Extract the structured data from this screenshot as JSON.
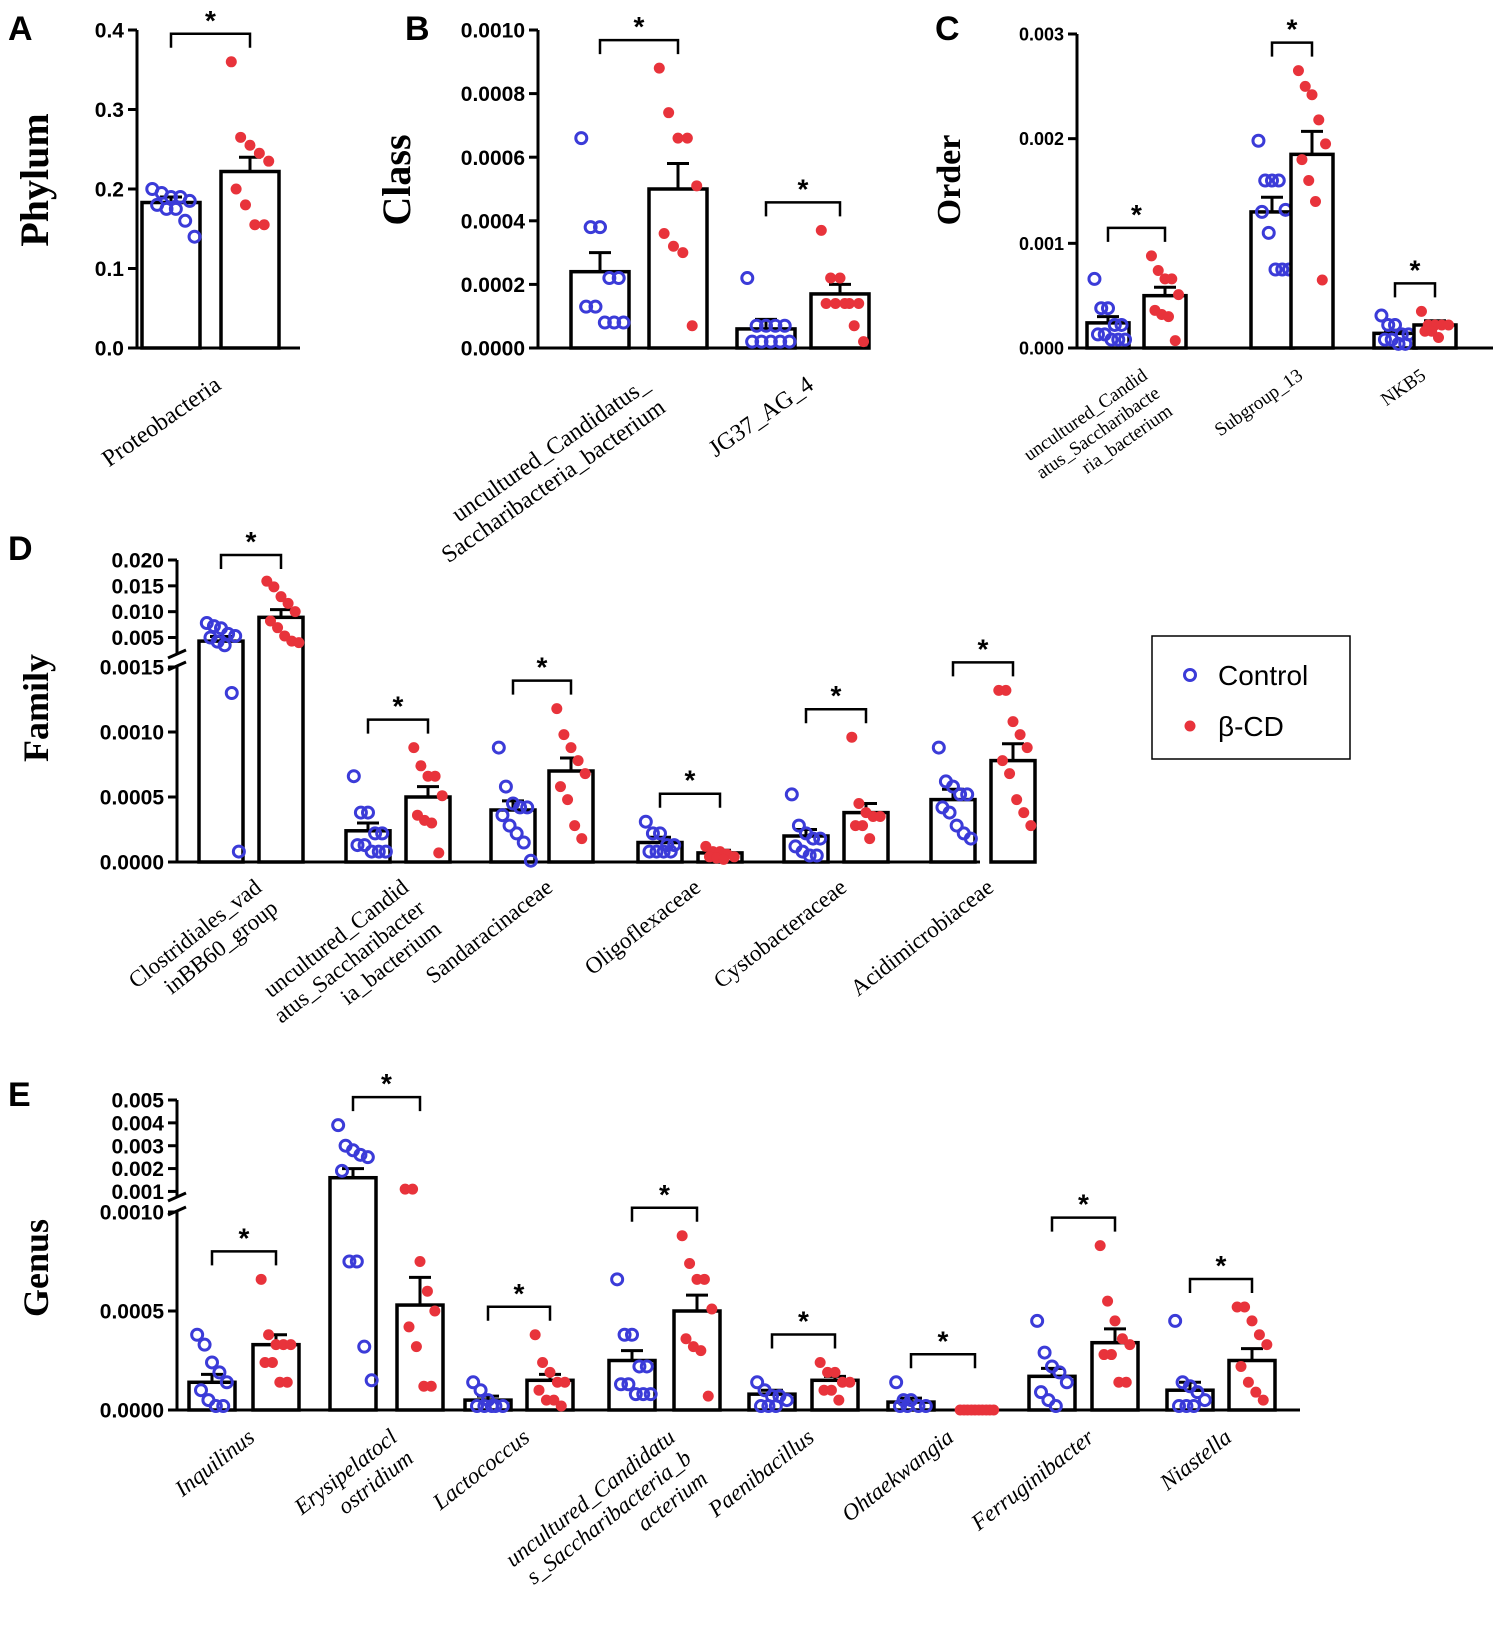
{
  "legend": {
    "control": "Control",
    "treatment": "β-CD"
  },
  "colors": {
    "control": "#3b3bd8",
    "treatment": "#e8333b"
  },
  "chart_data": [
    {
      "panel": "A",
      "type": "bar",
      "ylabel": "Phylum",
      "ylim": [
        0,
        0.4
      ],
      "ticks": [
        0,
        0.1,
        0.2,
        0.3,
        0.4
      ],
      "tick_labels": [
        "0.0",
        "0.1",
        "0.2",
        "0.3",
        "0.4"
      ],
      "categories": [
        "Proteobacteria"
      ],
      "cat_italic": false,
      "series": [
        {
          "name": "Control",
          "values": [
            0.183
          ],
          "sem": [
            0.007
          ],
          "points": [
            [
              0.2,
              0.195,
              0.19,
              0.19,
              0.185,
              0.18,
              0.175,
              0.175,
              0.16,
              0.14
            ]
          ]
        },
        {
          "name": "β-CD",
          "values": [
            0.222
          ],
          "sem": [
            0.018
          ],
          "points": [
            [
              0.36,
              0.265,
              0.255,
              0.245,
              0.235,
              0.2,
              0.18,
              0.155,
              0.155
            ]
          ]
        }
      ],
      "significance": [
        "*"
      ]
    },
    {
      "panel": "B",
      "type": "bar",
      "ylabel": "Class",
      "ylim": [
        0,
        0.001
      ],
      "ticks": [
        0,
        0.0002,
        0.0004,
        0.0006,
        0.0008,
        0.001
      ],
      "tick_labels": [
        "0.0000",
        "0.0002",
        "0.0004",
        "0.0006",
        "0.0008",
        "0.0010"
      ],
      "categories": [
        "uncultured_Candidatus_|Saccharibacteria_bacterium",
        "JG37_AG_4"
      ],
      "cat_italic": false,
      "series": [
        {
          "name": "Control",
          "values": [
            0.00024,
            6e-05
          ],
          "sem": [
            6e-05,
            3e-05
          ],
          "points": [
            [
              0.00066,
              0.00038,
              0.00038,
              0.00022,
              0.00022,
              0.00013,
              0.00013,
              8e-05,
              8e-05,
              8e-05
            ],
            [
              0.00022,
              7e-05,
              7e-05,
              7e-05,
              7e-05,
              2e-05,
              2e-05,
              2e-05,
              2e-05,
              2e-05
            ]
          ]
        },
        {
          "name": "β-CD",
          "values": [
            0.0005,
            0.00017
          ],
          "sem": [
            8e-05,
            3e-05
          ],
          "points": [
            [
              0.00088,
              0.00074,
              0.00066,
              0.00066,
              0.00051,
              0.00036,
              0.00032,
              0.0003,
              7e-05
            ],
            [
              0.00037,
              0.00022,
              0.00022,
              0.00014,
              0.00014,
              0.00014,
              0.00014,
              0.00014,
              7e-05,
              2e-05
            ]
          ]
        }
      ],
      "significance": [
        "*",
        "*"
      ]
    },
    {
      "panel": "C",
      "type": "bar",
      "ylabel": "Order",
      "ylim": [
        0,
        0.003
      ],
      "ticks": [
        0,
        0.001,
        0.002,
        0.003
      ],
      "tick_labels": [
        "0.000",
        "0.001",
        "0.002",
        "0.003"
      ],
      "categories": [
        "uncultured_Candid|atus_Saccharibacte|ria_bacterium",
        "Subgroup_13",
        "NKB5"
      ],
      "cat_italic": false,
      "series": [
        {
          "name": "Control",
          "values": [
            0.00024,
            0.0013,
            0.00014
          ],
          "sem": [
            6e-05,
            0.00014,
            3e-05
          ],
          "points": [
            [
              0.00066,
              0.00038,
              0.00038,
              0.00022,
              0.00022,
              0.00013,
              0.00013,
              8e-05,
              8e-05,
              8e-05
            ],
            [
              0.00198,
              0.0016,
              0.0016,
              0.0016,
              0.00132,
              0.0013,
              0.0011,
              0.00075,
              0.00075,
              0.00075
            ],
            [
              0.00031,
              0.00022,
              0.00022,
              0.00013,
              0.00013,
              8e-05,
              8e-05,
              4e-05,
              4e-05
            ]
          ]
        },
        {
          "name": "β-CD",
          "values": [
            0.0005,
            0.00185,
            0.00022
          ],
          "sem": [
            8e-05,
            0.00022,
            4e-05
          ],
          "points": [
            [
              0.00088,
              0.00074,
              0.00066,
              0.00066,
              0.00051,
              0.00036,
              0.00032,
              0.0003,
              7e-05
            ],
            [
              0.00265,
              0.0025,
              0.00242,
              0.00218,
              0.00195,
              0.0018,
              0.0016,
              0.0014,
              0.00065
            ],
            [
              0.00035,
              0.00022,
              0.00022,
              0.00022,
              0.00022,
              0.00016,
              0.00016,
              0.0001
            ]
          ]
        }
      ],
      "significance": [
        "*",
        "*",
        "*"
      ]
    },
    {
      "panel": "D",
      "type": "bar",
      "ylabel": "Family",
      "broken_axis": true,
      "ylim_low": [
        0,
        0.0015
      ],
      "ylim_high": [
        0.002,
        0.02
      ],
      "ticks_low": [
        0,
        0.0005,
        0.001,
        0.0015
      ],
      "tick_labels_low": [
        "0.0000",
        "0.0005",
        "0.0010",
        "0.0015"
      ],
      "ticks_high": [
        0.005,
        0.01,
        0.015,
        0.02
      ],
      "tick_labels_high": [
        "0.005",
        "0.010",
        "0.015",
        "0.020"
      ],
      "categories": [
        "Clostridiales_vad|inBB60_group",
        "uncultured_Candid|atus_Saccharibacter|ia_bacterium",
        "Sandaracinaceae",
        "Oligoflexaceae",
        "Cystobacteraceae",
        "Acidimicrobiaceae"
      ],
      "cat_italic": false,
      "series": [
        {
          "name": "Control",
          "values": [
            0.0043,
            0.00024,
            0.0004,
            0.00015,
            0.0002,
            0.00048
          ],
          "sem": [
            0.0009,
            6e-05,
            7e-05,
            4e-05,
            5e-05,
            8e-05
          ],
          "points": [
            [
              0.0078,
              0.0072,
              0.0068,
              0.0057,
              0.0053,
              0.005,
              0.0042,
              0.0035,
              0.0013,
              8e-05
            ],
            [
              0.00066,
              0.00038,
              0.00038,
              0.00022,
              0.00022,
              0.00013,
              0.00013,
              8e-05,
              8e-05,
              8e-05
            ],
            [
              0.00088,
              0.00058,
              0.00045,
              0.00042,
              0.00042,
              0.00036,
              0.00028,
              0.00022,
              0.00015,
              1e-05
            ],
            [
              0.00031,
              0.00022,
              0.00022,
              0.00013,
              0.00013,
              8e-05,
              8e-05,
              8e-05,
              8e-05
            ],
            [
              0.00052,
              0.00028,
              0.00022,
              0.00018,
              0.00018,
              0.00012,
              8e-05,
              5e-05,
              5e-05
            ],
            [
              0.00088,
              0.00062,
              0.00058,
              0.00052,
              0.00052,
              0.00042,
              0.00038,
              0.00028,
              0.00022,
              0.00018
            ]
          ]
        },
        {
          "name": "β-CD",
          "values": [
            0.0089,
            0.0005,
            0.0007,
            7e-05,
            0.00038,
            0.00078
          ],
          "sem": [
            0.0015,
            8e-05,
            0.0001,
            2e-05,
            7e-05,
            0.00013
          ],
          "points": [
            [
              0.0159,
              0.0148,
              0.0129,
              0.0116,
              0.01,
              0.0082,
              0.0069,
              0.0053,
              0.0043,
              0.004
            ],
            [
              0.00088,
              0.00074,
              0.00066,
              0.00066,
              0.00051,
              0.00036,
              0.00032,
              0.0003,
              7e-05
            ],
            [
              0.00118,
              0.00098,
              0.00088,
              0.00078,
              0.00068,
              0.00058,
              0.00048,
              0.00028,
              0.00018
            ],
            [
              0.00012,
              8e-05,
              8e-05,
              6e-05,
              4e-05,
              4e-05,
              3e-05,
              2e-05
            ],
            [
              0.00096,
              0.00045,
              0.00038,
              0.00035,
              0.00035,
              0.00028,
              0.00028,
              0.00018
            ],
            [
              0.00132,
              0.00132,
              0.00108,
              0.00098,
              0.00088,
              0.00078,
              0.00068,
              0.00048,
              0.00038,
              0.00028
            ]
          ]
        }
      ],
      "significance": [
        "*",
        "*",
        "*",
        "*",
        "*",
        "*"
      ]
    },
    {
      "panel": "E",
      "type": "bar",
      "ylabel": "Genus",
      "broken_axis": true,
      "ylim_low": [
        0,
        0.001
      ],
      "ylim_high": [
        0.0008,
        0.005
      ],
      "ticks_low": [
        0,
        0.0005,
        0.001
      ],
      "tick_labels_low": [
        "0.0000",
        "0.0005",
        "0.0010"
      ],
      "ticks_high": [
        0.001,
        0.002,
        0.003,
        0.004,
        0.005
      ],
      "tick_labels_high": [
        "0.001",
        "0.002",
        "0.003",
        "0.004",
        "0.005"
      ],
      "categories": [
        "Inquilinus",
        "Erysipelatocl|ostridium",
        "Lactococcus",
        "uncultured_Candidatu|s_Saccharibacteria_b|acterium",
        "Paenibacillus",
        "Ohtaekwangia",
        "Ferruginibacter",
        "Niastella"
      ],
      "cat_italic": true,
      "series": [
        {
          "name": "Control",
          "values": [
            0.00014,
            0.0016,
            5e-05,
            0.00025,
            8e-05,
            4e-05,
            0.00017,
            0.0001
          ],
          "sem": [
            4e-05,
            0.0004,
            2e-05,
            5e-05,
            2e-05,
            2e-05,
            4e-05,
            4e-05
          ],
          "points": [
            [
              0.00038,
              0.00033,
              0.00024,
              0.00019,
              0.00014,
              0.0001,
              5e-05,
              2e-05,
              2e-05
            ],
            [
              0.0039,
              0.003,
              0.0028,
              0.0026,
              0.0025,
              0.0019,
              0.00075,
              0.00075,
              0.00032,
              0.00015
            ],
            [
              0.00014,
              0.0001,
              5e-05,
              2e-05,
              2e-05,
              2e-05,
              2e-05,
              2e-05
            ],
            [
              0.00066,
              0.00038,
              0.00038,
              0.00022,
              0.00022,
              0.00013,
              0.00013,
              8e-05,
              8e-05,
              8e-05
            ],
            [
              0.00014,
              0.0001,
              7e-05,
              7e-05,
              5e-05,
              2e-05,
              2e-05,
              2e-05
            ],
            [
              0.00014,
              5e-05,
              5e-05,
              2e-05,
              2e-05,
              2e-05,
              2e-05
            ],
            [
              0.00045,
              0.00029,
              0.00022,
              0.00019,
              0.00014,
              9e-05,
              5e-05,
              2e-05
            ],
            [
              0.00045,
              0.00014,
              0.00012,
              9e-05,
              5e-05,
              2e-05,
              2e-05,
              2e-05
            ]
          ]
        },
        {
          "name": "β-CD",
          "values": [
            0.00033,
            0.00053,
            0.00015,
            0.0005,
            0.00015,
            0,
            0.00034,
            0.00025
          ],
          "sem": [
            5e-05,
            0.00014,
            3e-05,
            8e-05,
            2e-05,
            0,
            7e-05,
            6e-05
          ],
          "points": [
            [
              0.00066,
              0.00038,
              0.00033,
              0.00033,
              0.00033,
              0.00024,
              0.00024,
              0.00014,
              0.00014
            ],
            [
              0.0011,
              0.0011,
              0.00075,
              0.0006,
              0.0005,
              0.00042,
              0.00032,
              0.00012,
              0.00012
            ],
            [
              0.00038,
              0.00024,
              0.00019,
              0.00014,
              0.00014,
              0.0001,
              5e-05,
              5e-05,
              2e-05
            ],
            [
              0.00088,
              0.00074,
              0.00066,
              0.00066,
              0.00051,
              0.00036,
              0.00032,
              0.0003,
              7e-05
            ],
            [
              0.00024,
              0.00019,
              0.00019,
              0.00014,
              0.00014,
              0.0001,
              0.0001,
              5e-05
            ],
            [
              0,
              0,
              0,
              0,
              0,
              0,
              0,
              0,
              0,
              0
            ],
            [
              0.00083,
              0.00055,
              0.00045,
              0.00036,
              0.00033,
              0.00028,
              0.00028,
              0.00014,
              0.00014
            ],
            [
              0.00052,
              0.00052,
              0.00045,
              0.00038,
              0.00033,
              0.00022,
              0.00014,
              9e-05,
              5e-05
            ]
          ]
        }
      ],
      "significance": [
        "*",
        "*",
        "*",
        "*",
        "*",
        "*",
        "*",
        "*"
      ]
    }
  ]
}
